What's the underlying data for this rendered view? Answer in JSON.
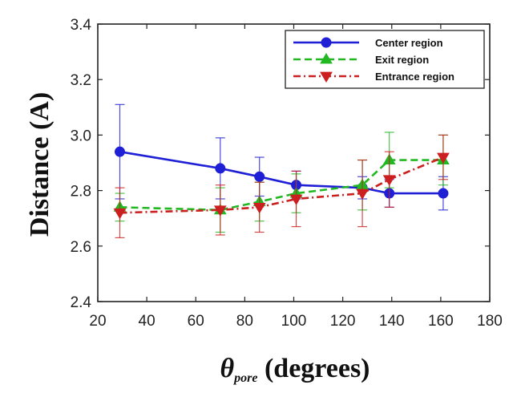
{
  "chart_data": {
    "type": "line",
    "title": "",
    "xlabel": {
      "symbol": "θ",
      "subscript": "pore",
      "rest": " (degrees)"
    },
    "ylabel": "Distance (A)",
    "xlim": [
      20,
      180
    ],
    "ylim": [
      2.4,
      3.4
    ],
    "xticks": [
      20,
      40,
      60,
      80,
      100,
      120,
      140,
      160,
      180
    ],
    "yticks": [
      "2.4",
      "2.6",
      "2.8",
      "3.0",
      "3.2",
      "3.4"
    ],
    "grid": false,
    "legend_position": "top-right",
    "series": [
      {
        "name": "Center region",
        "color": "#1f1fd6",
        "line_style": "solid",
        "marker": "circle",
        "points": [
          {
            "x": 29,
            "y": 2.94,
            "err": 0.17
          },
          {
            "x": 70,
            "y": 2.88,
            "err": 0.11
          },
          {
            "x": 86,
            "y": 2.85,
            "err": 0.07
          },
          {
            "x": 101,
            "y": 2.82,
            "err": 0.05
          },
          {
            "x": 128,
            "y": 2.81,
            "err": 0.04
          },
          {
            "x": 139,
            "y": 2.79,
            "err": 0.05
          },
          {
            "x": 161,
            "y": 2.79,
            "err": 0.06
          }
        ]
      },
      {
        "name": "Exit region",
        "color": "#22b822",
        "line_style": "dashed",
        "marker": "triangle-up",
        "points": [
          {
            "x": 29,
            "y": 2.74,
            "err": 0.05
          },
          {
            "x": 70,
            "y": 2.73,
            "err": 0.08
          },
          {
            "x": 86,
            "y": 2.76,
            "err": 0.07
          },
          {
            "x": 101,
            "y": 2.79,
            "err": 0.07
          },
          {
            "x": 128,
            "y": 2.82,
            "err": 0.09
          },
          {
            "x": 139,
            "y": 2.91,
            "err": 0.1
          },
          {
            "x": 161,
            "y": 2.91,
            "err": 0.09
          }
        ]
      },
      {
        "name": "Entrance region",
        "color": "#cc1f1f",
        "line_style": "dashdot",
        "marker": "triangle-down",
        "points": [
          {
            "x": 29,
            "y": 2.72,
            "err": 0.09
          },
          {
            "x": 70,
            "y": 2.73,
            "err": 0.09
          },
          {
            "x": 86,
            "y": 2.74,
            "err": 0.09
          },
          {
            "x": 101,
            "y": 2.77,
            "err": 0.1
          },
          {
            "x": 128,
            "y": 2.79,
            "err": 0.12
          },
          {
            "x": 139,
            "y": 2.84,
            "err": 0.1
          },
          {
            "x": 161,
            "y": 2.92,
            "err": 0.08
          }
        ]
      }
    ]
  }
}
